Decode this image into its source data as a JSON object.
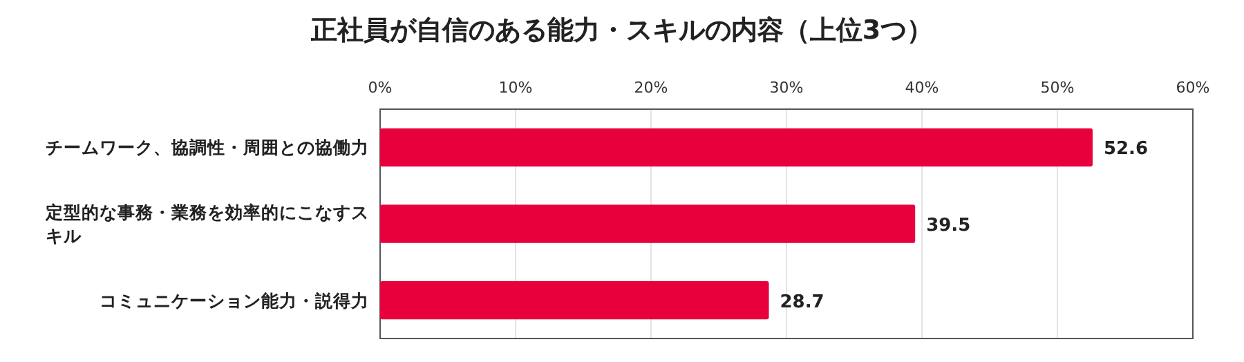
{
  "chart_data": {
    "type": "bar",
    "orientation": "horizontal",
    "title": "正社員が自信のある能力・スキルの内容（上位3つ）",
    "categories": [
      "チームワーク、協調性・周囲との協働力",
      "定型的な事務・業務を効率的にこなすスキル",
      "コミュニケーション能力・説得力"
    ],
    "values": [
      52.6,
      39.5,
      28.7
    ],
    "color": "#e8003c",
    "data_labels": true,
    "xlim": [
      0,
      60
    ],
    "xticks": [
      {
        "value": 0,
        "label": "0%"
      },
      {
        "value": 10,
        "label": "10%"
      },
      {
        "value": 20,
        "label": "20%"
      },
      {
        "value": 30,
        "label": "30%"
      },
      {
        "value": 40,
        "label": "40%"
      },
      {
        "value": 50,
        "label": "50%"
      },
      {
        "value": 60,
        "label": "60%"
      }
    ],
    "grid": "x"
  }
}
